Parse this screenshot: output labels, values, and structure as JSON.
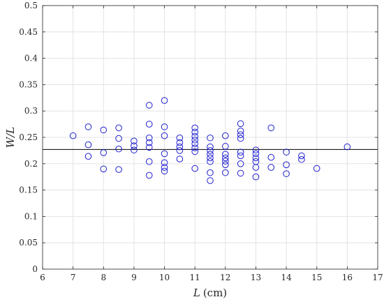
{
  "chart_data": {
    "type": "scatter",
    "title": "",
    "xlabel_var": "L",
    "xlabel_unit": "(cm)",
    "ylabel": "W/L",
    "xlim": [
      6,
      17
    ],
    "ylim": [
      0,
      0.5
    ],
    "x_ticks": [
      6,
      7,
      8,
      9,
      10,
      11,
      12,
      13,
      14,
      15,
      16,
      17
    ],
    "y_ticks": [
      0,
      0.05,
      0.1,
      0.15,
      0.2,
      0.25,
      0.3,
      0.35,
      0.4,
      0.45,
      0.5
    ],
    "grid": true,
    "marker": "open-circle",
    "marker_color": "#1f1fd0",
    "reference_line_y": 0.227,
    "reference_line_color": "#000000",
    "points": [
      {
        "x": 7,
        "y": 0.253
      },
      {
        "x": 7.5,
        "y": 0.27
      },
      {
        "x": 7.5,
        "y": 0.236
      },
      {
        "x": 7.5,
        "y": 0.214
      },
      {
        "x": 8,
        "y": 0.264
      },
      {
        "x": 8,
        "y": 0.221
      },
      {
        "x": 8,
        "y": 0.19
      },
      {
        "x": 8.5,
        "y": 0.268
      },
      {
        "x": 8.5,
        "y": 0.248
      },
      {
        "x": 8.5,
        "y": 0.228
      },
      {
        "x": 8.5,
        "y": 0.189
      },
      {
        "x": 9,
        "y": 0.243
      },
      {
        "x": 9,
        "y": 0.234
      },
      {
        "x": 9,
        "y": 0.226
      },
      {
        "x": 9.5,
        "y": 0.311
      },
      {
        "x": 9.5,
        "y": 0.275
      },
      {
        "x": 9.5,
        "y": 0.249
      },
      {
        "x": 9.5,
        "y": 0.24
      },
      {
        "x": 9.5,
        "y": 0.231
      },
      {
        "x": 9.5,
        "y": 0.204
      },
      {
        "x": 9.5,
        "y": 0.178
      },
      {
        "x": 10,
        "y": 0.32
      },
      {
        "x": 10,
        "y": 0.27
      },
      {
        "x": 10,
        "y": 0.253
      },
      {
        "x": 10,
        "y": 0.219
      },
      {
        "x": 10,
        "y": 0.202
      },
      {
        "x": 10,
        "y": 0.193
      },
      {
        "x": 10,
        "y": 0.186
      },
      {
        "x": 10.5,
        "y": 0.249
      },
      {
        "x": 10.5,
        "y": 0.24
      },
      {
        "x": 10.5,
        "y": 0.232
      },
      {
        "x": 10.5,
        "y": 0.225
      },
      {
        "x": 10.5,
        "y": 0.209
      },
      {
        "x": 11,
        "y": 0.268
      },
      {
        "x": 11,
        "y": 0.26
      },
      {
        "x": 11,
        "y": 0.252
      },
      {
        "x": 11,
        "y": 0.245
      },
      {
        "x": 11,
        "y": 0.238
      },
      {
        "x": 11,
        "y": 0.23
      },
      {
        "x": 11,
        "y": 0.223
      },
      {
        "x": 11,
        "y": 0.191
      },
      {
        "x": 11.5,
        "y": 0.249
      },
      {
        "x": 11.5,
        "y": 0.232
      },
      {
        "x": 11.5,
        "y": 0.225
      },
      {
        "x": 11.5,
        "y": 0.218
      },
      {
        "x": 11.5,
        "y": 0.211
      },
      {
        "x": 11.5,
        "y": 0.204
      },
      {
        "x": 11.5,
        "y": 0.183
      },
      {
        "x": 11.5,
        "y": 0.168
      },
      {
        "x": 12,
        "y": 0.253
      },
      {
        "x": 12,
        "y": 0.233
      },
      {
        "x": 12,
        "y": 0.218
      },
      {
        "x": 12,
        "y": 0.211
      },
      {
        "x": 12,
        "y": 0.205
      },
      {
        "x": 12,
        "y": 0.198
      },
      {
        "x": 12,
        "y": 0.183
      },
      {
        "x": 12.5,
        "y": 0.276
      },
      {
        "x": 12.5,
        "y": 0.262
      },
      {
        "x": 12.5,
        "y": 0.255
      },
      {
        "x": 12.5,
        "y": 0.248
      },
      {
        "x": 12.5,
        "y": 0.222
      },
      {
        "x": 12.5,
        "y": 0.215
      },
      {
        "x": 12.5,
        "y": 0.2
      },
      {
        "x": 12.5,
        "y": 0.182
      },
      {
        "x": 13,
        "y": 0.226
      },
      {
        "x": 13,
        "y": 0.219
      },
      {
        "x": 13,
        "y": 0.211
      },
      {
        "x": 13,
        "y": 0.204
      },
      {
        "x": 13,
        "y": 0.193
      },
      {
        "x": 13,
        "y": 0.175
      },
      {
        "x": 13.5,
        "y": 0.268
      },
      {
        "x": 13.5,
        "y": 0.212
      },
      {
        "x": 13.5,
        "y": 0.193
      },
      {
        "x": 14,
        "y": 0.222
      },
      {
        "x": 14,
        "y": 0.198
      },
      {
        "x": 14,
        "y": 0.181
      },
      {
        "x": 14.5,
        "y": 0.215
      },
      {
        "x": 14.5,
        "y": 0.208
      },
      {
        "x": 15,
        "y": 0.191
      },
      {
        "x": 16,
        "y": 0.232
      }
    ]
  }
}
